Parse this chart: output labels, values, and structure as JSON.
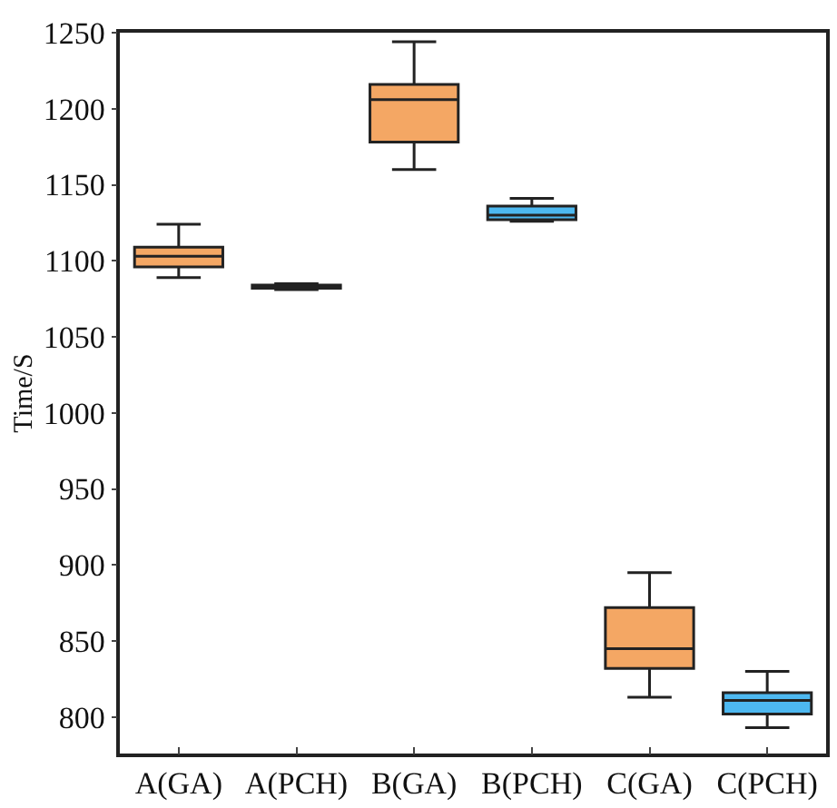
{
  "chart_data": {
    "type": "box",
    "ylabel": "Time/S",
    "categories": [
      "A(GA)",
      "A(PCH)",
      "B(GA)",
      "B(PCH)",
      "C(GA)",
      "C(PCH)"
    ],
    "boxes": [
      {
        "low": 1089,
        "q1": 1096,
        "median": 1103,
        "q3": 1109,
        "high": 1124
      },
      {
        "low": 1081,
        "q1": 1082,
        "median": 1083,
        "q3": 1084,
        "high": 1085
      },
      {
        "low": 1160,
        "q1": 1178,
        "median": 1206,
        "q3": 1216,
        "high": 1244
      },
      {
        "low": 1126,
        "q1": 1127,
        "median": 1130,
        "q3": 1136,
        "high": 1141
      },
      {
        "low": 813,
        "q1": 832,
        "median": 845,
        "q3": 872,
        "high": 895
      },
      {
        "low": 793,
        "q1": 802,
        "median": 811,
        "q3": 816,
        "high": 830
      }
    ],
    "colors": [
      "#f4a764",
      "#0a0a0a",
      "#f4a764",
      "#4db8f0",
      "#f4a764",
      "#4db8f0"
    ],
    "ylim": [
      776,
      1250
    ],
    "yticks": [
      800,
      850,
      900,
      950,
      1000,
      1050,
      1100,
      1150,
      1200,
      1250
    ]
  }
}
